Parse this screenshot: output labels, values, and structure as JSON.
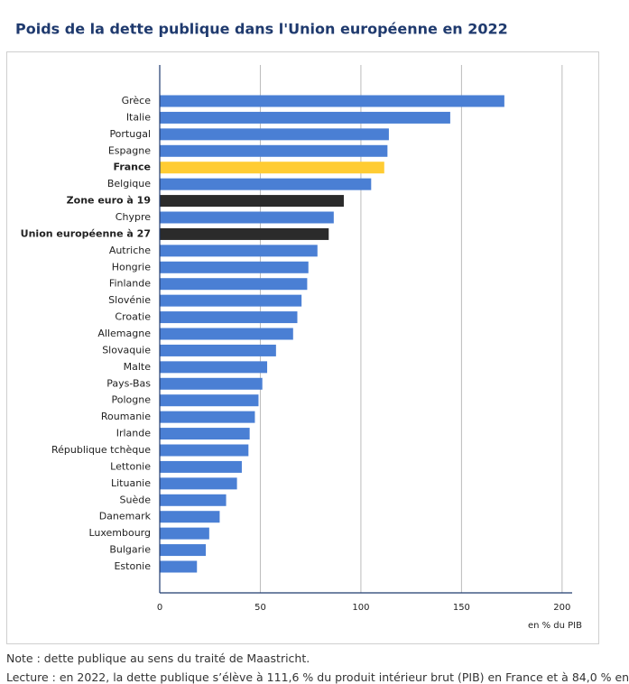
{
  "chart_data": {
    "type": "hbar",
    "title": "Poids de la dette publique dans l'Union européenne en 2022",
    "categories": [
      "Grèce",
      "Italie",
      "Portugal",
      "Espagne",
      "France",
      "Belgique",
      "Zone euro à 19",
      "Chypre",
      "Union européenne à 27",
      "Autriche",
      "Hongrie",
      "Finlande",
      "Slovénie",
      "Croatie",
      "Allemagne",
      "Slovaquie",
      "Malte",
      "Pays-Bas",
      "Pologne",
      "Roumanie",
      "Irlande",
      "République tchèque",
      "Lettonie",
      "Lituanie",
      "Suède",
      "Danemark",
      "Luxembourg",
      "Bulgarie",
      "Estonie"
    ],
    "values": [
      171.3,
      144.4,
      113.9,
      113.2,
      111.6,
      105.1,
      91.5,
      86.5,
      84.0,
      78.4,
      73.9,
      73.3,
      70.5,
      68.4,
      66.3,
      57.8,
      53.4,
      51.0,
      49.1,
      47.3,
      44.7,
      44.1,
      40.8,
      38.4,
      33.0,
      29.8,
      24.6,
      22.9,
      18.5
    ],
    "color": "#4a7fd4",
    "bar_colors": [
      "#4a7fd4",
      "#4a7fd4",
      "#4a7fd4",
      "#4a7fd4",
      "#ffcc33",
      "#4a7fd4",
      "#2b2b2b",
      "#4a7fd4",
      "#2b2b2b",
      "#4a7fd4",
      "#4a7fd4",
      "#4a7fd4",
      "#4a7fd4",
      "#4a7fd4",
      "#4a7fd4",
      "#4a7fd4",
      "#4a7fd4",
      "#4a7fd4",
      "#4a7fd4",
      "#4a7fd4",
      "#4a7fd4",
      "#4a7fd4",
      "#4a7fd4",
      "#4a7fd4",
      "#4a7fd4",
      "#4a7fd4",
      "#4a7fd4",
      "#4a7fd4",
      "#4a7fd4"
    ],
    "xlim": [
      0,
      205
    ],
    "xticks": [
      0,
      50,
      100,
      150,
      200
    ],
    "grid": true,
    "x_label": "en % du PIB"
  },
  "notes": {
    "note": "Note : dette publique au sens du traité de Maastricht.",
    "lecture": "Lecture : en 2022, la dette publique s’élève à 111,6 % du produit intérieur brut (PIB) en France et à 84,0 % en"
  }
}
